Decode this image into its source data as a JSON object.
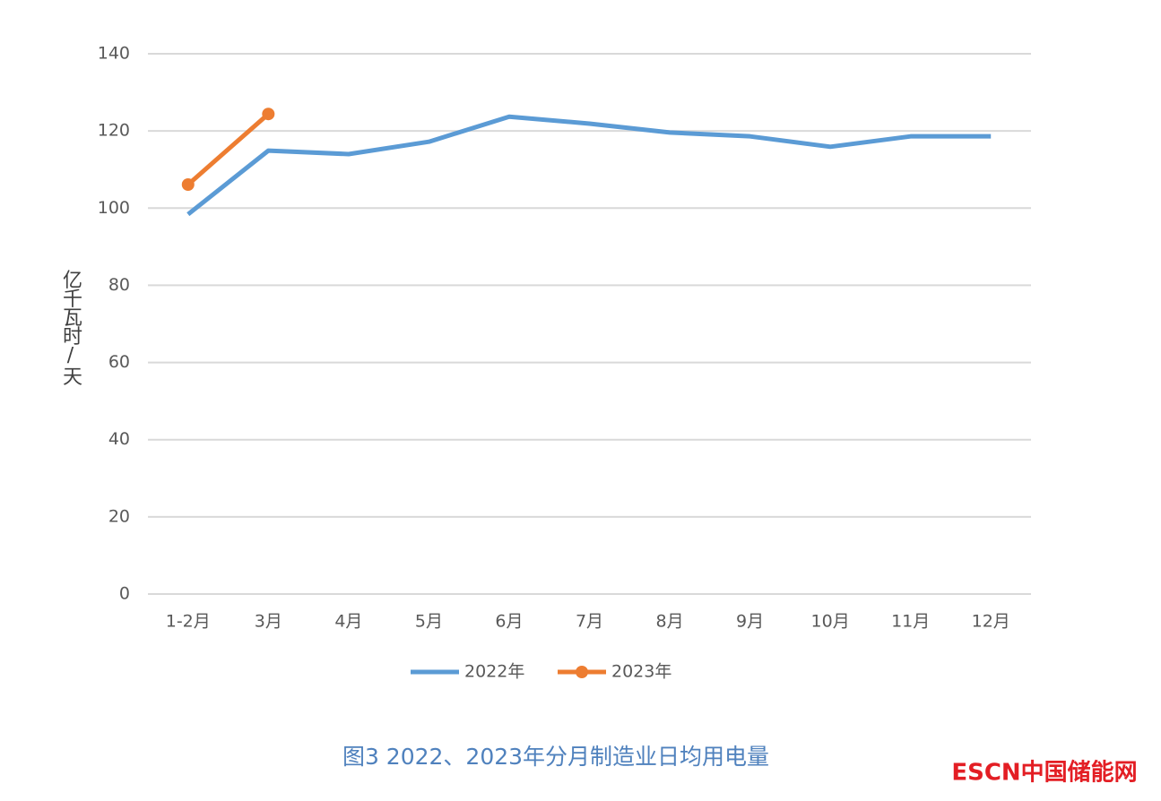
{
  "chart_data": {
    "type": "line",
    "title": "图3  2022、2023年分月制造业日均用电量",
    "watermark": "ESCN中国储能网",
    "y_label": "亿千瓦时/天",
    "categories": [
      "1-2月",
      "3月",
      "4月",
      "5月",
      "6月",
      "7月",
      "8月",
      "9月",
      "10月",
      "11月",
      "12月"
    ],
    "series": [
      {
        "name": "2022年",
        "color": "#5b9bd5",
        "markers": false,
        "values": [
          98.4,
          114.9,
          114.0,
          117.2,
          123.7,
          121.9,
          119.6,
          118.6,
          115.9,
          118.6,
          118.6
        ]
      },
      {
        "name": "2023年",
        "color": "#ed7d31",
        "markers": true,
        "values": [
          106.1,
          124.4,
          null,
          null,
          null,
          null,
          null,
          null,
          null,
          null,
          null
        ]
      }
    ],
    "ylim": [
      0,
      140
    ],
    "yticks": [
      0,
      20,
      40,
      60,
      80,
      100,
      120,
      140
    ],
    "grid": true,
    "legend": "bottom"
  }
}
